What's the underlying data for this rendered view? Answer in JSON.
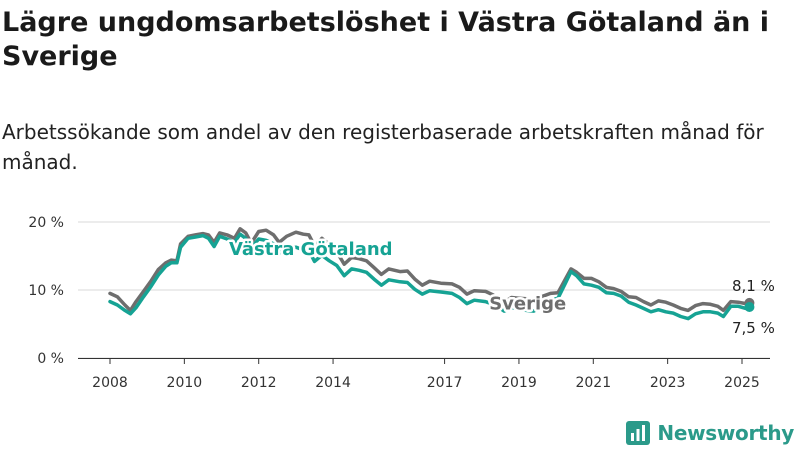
{
  "page": {
    "title": "Lägre ungdomsarbetslöshet i Västra Götaland än i Sverige",
    "subtitle": "Arbetssökande som andel av den registerbaserade arbetskraften månad för månad.",
    "brand": "Newsworthy"
  },
  "chart_data": {
    "type": "line",
    "title": "Lägre ungdomsarbetslöshet i Västra Götaland än i Sverige",
    "subtitle": "Arbetssökande som andel av den registerbaserade arbetskraften månad för månad.",
    "xlabel": "",
    "ylabel": "",
    "x_range": [
      2008.0,
      2025.3
    ],
    "ylim": [
      0,
      20
    ],
    "y_ticks": [
      0,
      10,
      20
    ],
    "y_tick_labels": [
      "0 %",
      "10 %",
      "20 %"
    ],
    "x_ticks": [
      2008,
      2010,
      2012,
      2014,
      2017,
      2019,
      2021,
      2023,
      2025
    ],
    "x_tick_labels": [
      "2008",
      "2010",
      "2012",
      "2014",
      "2017",
      "2019",
      "2021",
      "2023",
      "2025"
    ],
    "grid": "horizontal",
    "series": [
      {
        "name": "Sverige",
        "color": "#6e6e6e",
        "end_label": "8,1 %",
        "points": [
          [
            2008.0,
            9.5
          ],
          [
            2008.2,
            9.0
          ],
          [
            2008.4,
            7.8
          ],
          [
            2008.55,
            7.0
          ],
          [
            2008.7,
            8.3
          ],
          [
            2008.9,
            9.8
          ],
          [
            2009.1,
            11.3
          ],
          [
            2009.3,
            13.0
          ],
          [
            2009.5,
            14.0
          ],
          [
            2009.65,
            14.4
          ],
          [
            2009.8,
            14.3
          ],
          [
            2009.9,
            16.8
          ],
          [
            2010.1,
            17.9
          ],
          [
            2010.3,
            18.1
          ],
          [
            2010.5,
            18.3
          ],
          [
            2010.65,
            18.1
          ],
          [
            2010.8,
            17.0
          ],
          [
            2010.95,
            18.4
          ],
          [
            2011.15,
            18.1
          ],
          [
            2011.35,
            17.6
          ],
          [
            2011.5,
            19.0
          ],
          [
            2011.65,
            18.4
          ],
          [
            2011.8,
            16.9
          ],
          [
            2012.0,
            18.6
          ],
          [
            2012.2,
            18.8
          ],
          [
            2012.4,
            18.1
          ],
          [
            2012.55,
            17.0
          ],
          [
            2012.75,
            17.9
          ],
          [
            2013.0,
            18.5
          ],
          [
            2013.2,
            18.2
          ],
          [
            2013.35,
            18.1
          ],
          [
            2013.5,
            16.5
          ],
          [
            2013.7,
            17.6
          ],
          [
            2013.9,
            16.7
          ],
          [
            2014.1,
            15.6
          ],
          [
            2014.3,
            13.8
          ],
          [
            2014.5,
            14.8
          ],
          [
            2014.7,
            14.6
          ],
          [
            2014.9,
            14.3
          ],
          [
            2015.1,
            13.3
          ],
          [
            2015.3,
            12.3
          ],
          [
            2015.5,
            13.1
          ],
          [
            2015.8,
            12.7
          ],
          [
            2016.0,
            12.8
          ],
          [
            2016.2,
            11.6
          ],
          [
            2016.4,
            10.7
          ],
          [
            2016.6,
            11.3
          ],
          [
            2016.9,
            11.0
          ],
          [
            2017.2,
            10.9
          ],
          [
            2017.4,
            10.4
          ],
          [
            2017.6,
            9.4
          ],
          [
            2017.8,
            9.9
          ],
          [
            2018.1,
            9.8
          ],
          [
            2018.3,
            9.3
          ],
          [
            2018.5,
            8.6
          ],
          [
            2018.6,
            8.2
          ],
          [
            2018.8,
            8.9
          ],
          [
            2019.0,
            8.8
          ],
          [
            2019.2,
            8.7
          ],
          [
            2019.4,
            8.6
          ],
          [
            2019.6,
            9.0
          ],
          [
            2019.85,
            9.5
          ],
          [
            2020.05,
            9.6
          ],
          [
            2020.25,
            11.6
          ],
          [
            2020.4,
            13.1
          ],
          [
            2020.55,
            12.6
          ],
          [
            2020.75,
            11.7
          ],
          [
            2020.95,
            11.7
          ],
          [
            2021.15,
            11.2
          ],
          [
            2021.35,
            10.4
          ],
          [
            2021.55,
            10.2
          ],
          [
            2021.75,
            9.8
          ],
          [
            2021.95,
            9.0
          ],
          [
            2022.15,
            8.9
          ],
          [
            2022.35,
            8.3
          ],
          [
            2022.55,
            7.8
          ],
          [
            2022.75,
            8.4
          ],
          [
            2022.95,
            8.2
          ],
          [
            2023.15,
            7.8
          ],
          [
            2023.35,
            7.3
          ],
          [
            2023.55,
            7.0
          ],
          [
            2023.75,
            7.7
          ],
          [
            2023.95,
            8.0
          ],
          [
            2024.15,
            7.9
          ],
          [
            2024.35,
            7.6
          ],
          [
            2024.5,
            7.0
          ],
          [
            2024.7,
            8.3
          ],
          [
            2024.9,
            8.2
          ],
          [
            2025.1,
            8.0
          ],
          [
            2025.2,
            8.1
          ]
        ]
      },
      {
        "name": "Västra Götaland",
        "color": "#16a394",
        "end_label": "7,5 %",
        "points": [
          [
            2008.0,
            8.3
          ],
          [
            2008.2,
            7.8
          ],
          [
            2008.4,
            7.0
          ],
          [
            2008.55,
            6.5
          ],
          [
            2008.7,
            7.4
          ],
          [
            2008.9,
            9.0
          ],
          [
            2009.1,
            10.5
          ],
          [
            2009.3,
            12.2
          ],
          [
            2009.5,
            13.5
          ],
          [
            2009.65,
            14.0
          ],
          [
            2009.8,
            14.0
          ],
          [
            2009.9,
            16.3
          ],
          [
            2010.1,
            17.6
          ],
          [
            2010.3,
            17.8
          ],
          [
            2010.5,
            18.0
          ],
          [
            2010.65,
            17.6
          ],
          [
            2010.8,
            16.4
          ],
          [
            2010.95,
            17.9
          ],
          [
            2011.15,
            17.5
          ],
          [
            2011.35,
            17.0
          ],
          [
            2011.5,
            18.2
          ],
          [
            2011.65,
            17.6
          ],
          [
            2011.8,
            16.2
          ],
          [
            2012.0,
            17.5
          ],
          [
            2012.2,
            17.3
          ],
          [
            2012.4,
            16.8
          ],
          [
            2012.55,
            15.4
          ],
          [
            2012.75,
            16.2
          ],
          [
            2013.0,
            16.3
          ],
          [
            2013.2,
            15.9
          ],
          [
            2013.35,
            15.8
          ],
          [
            2013.5,
            14.2
          ],
          [
            2013.7,
            15.1
          ],
          [
            2013.9,
            14.3
          ],
          [
            2014.1,
            13.6
          ],
          [
            2014.3,
            12.1
          ],
          [
            2014.5,
            13.1
          ],
          [
            2014.7,
            12.9
          ],
          [
            2014.9,
            12.6
          ],
          [
            2015.1,
            11.6
          ],
          [
            2015.3,
            10.7
          ],
          [
            2015.5,
            11.5
          ],
          [
            2015.8,
            11.2
          ],
          [
            2016.0,
            11.1
          ],
          [
            2016.2,
            10.1
          ],
          [
            2016.4,
            9.4
          ],
          [
            2016.6,
            9.9
          ],
          [
            2016.9,
            9.7
          ],
          [
            2017.2,
            9.5
          ],
          [
            2017.4,
            8.9
          ],
          [
            2017.6,
            8.0
          ],
          [
            2017.8,
            8.5
          ],
          [
            2018.1,
            8.3
          ],
          [
            2018.3,
            7.9
          ],
          [
            2018.5,
            7.3
          ],
          [
            2018.6,
            6.9
          ],
          [
            2018.8,
            7.4
          ],
          [
            2019.0,
            7.3
          ],
          [
            2019.2,
            7.0
          ],
          [
            2019.4,
            6.9
          ],
          [
            2019.6,
            7.5
          ],
          [
            2019.85,
            8.5
          ],
          [
            2020.05,
            8.8
          ],
          [
            2020.25,
            11.0
          ],
          [
            2020.4,
            12.7
          ],
          [
            2020.55,
            12.1
          ],
          [
            2020.75,
            10.9
          ],
          [
            2020.95,
            10.7
          ],
          [
            2021.15,
            10.4
          ],
          [
            2021.35,
            9.6
          ],
          [
            2021.55,
            9.5
          ],
          [
            2021.75,
            9.1
          ],
          [
            2021.95,
            8.2
          ],
          [
            2022.15,
            7.8
          ],
          [
            2022.35,
            7.3
          ],
          [
            2022.55,
            6.8
          ],
          [
            2022.75,
            7.1
          ],
          [
            2022.95,
            6.8
          ],
          [
            2023.15,
            6.6
          ],
          [
            2023.35,
            6.1
          ],
          [
            2023.55,
            5.8
          ],
          [
            2023.75,
            6.5
          ],
          [
            2023.95,
            6.8
          ],
          [
            2024.15,
            6.8
          ],
          [
            2024.35,
            6.6
          ],
          [
            2024.5,
            6.1
          ],
          [
            2024.7,
            7.6
          ],
          [
            2024.9,
            7.6
          ],
          [
            2025.1,
            7.3
          ],
          [
            2025.2,
            7.5
          ]
        ]
      }
    ],
    "annotations": [
      {
        "text": "Västra Götaland",
        "series": "Västra Götaland",
        "x": 2011.2,
        "y": 16.0
      },
      {
        "text": "Sverige",
        "series": "Sverige",
        "x": 2018.2,
        "y": 8.0
      }
    ]
  }
}
